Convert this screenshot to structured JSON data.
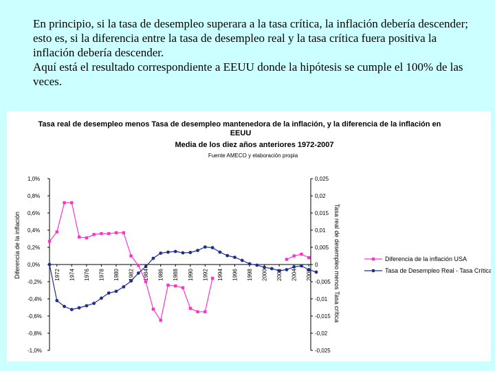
{
  "intro": {
    "paragraph1": "En principio, si la tasa de desempleo superara a la tasa crítica, la inflación debería descender; esto es, si la diferencia entre la tasa de desempleo real y la tasa crítica fuera positiva la inflación debería descender.",
    "paragraph2": "Aquí está el resultado correspondiente a EEUU donde la hipótesis se cumple el 100% de las veces."
  },
  "chart_data": {
    "type": "line",
    "title": "Tasa real de desempleo menos Tasa de desempleo mantenedora de la inflación, y la diferencia de la inflación en EEUU",
    "subtitle": "Media de los diez años anteriores 1972-2007",
    "source": "Fuente AMECO y elaboración propia",
    "ylabel_left": "Diferencia de la inflación",
    "ylabel_right": "Tasa real de desempleo menos Tasa crítica",
    "yticks_left": [
      "1,0%",
      "0,8%",
      "0,6%",
      "0,4%",
      "0,2%",
      "0,0%",
      "-0,2%",
      "-0,4%",
      "-0,6%",
      "-0,8%",
      "-1,0%"
    ],
    "yticks_right": [
      "0,025",
      "0,02",
      "0,015",
      "0,01",
      "0,005",
      "0",
      "-0,005",
      "-0,01",
      "-0,015",
      "-0,02",
      "-0,025"
    ],
    "ylim_left": [
      -1.0,
      1.0
    ],
    "ylim_right": [
      -0.025,
      0.025
    ],
    "x_tick_labels": [
      "1972",
      "1974",
      "1976",
      "1978",
      "1980",
      "1982",
      "1984",
      "1986",
      "1988",
      "1990",
      "1992",
      "1994",
      "1996",
      "1998",
      "2000",
      "2002",
      "2004",
      "2006"
    ],
    "x": [
      1971,
      1972,
      1973,
      1974,
      1975,
      1976,
      1977,
      1978,
      1979,
      1980,
      1981,
      1982,
      1983,
      1984,
      1985,
      1986,
      1987,
      1988,
      1989,
      1990,
      1991,
      1992,
      1993,
      1994,
      1995,
      1996,
      1997,
      1998,
      1999,
      2000,
      2001,
      2002,
      2003,
      2004,
      2005,
      2006,
      2007
    ],
    "legend_position": "right",
    "grid": false,
    "series": [
      {
        "name": "Diferencia de la inflación USA",
        "axis": "left",
        "color": "#ff33cc",
        "marker": "square",
        "values": [
          0.27,
          0.38,
          0.72,
          0.72,
          0.32,
          0.31,
          0.35,
          0.36,
          0.36,
          0.37,
          0.37,
          0.1,
          -0.01,
          -0.2,
          -0.52,
          -0.65,
          -0.24,
          -0.25,
          -0.27,
          -0.51,
          -0.55,
          -0.55,
          -0.16,
          null,
          null,
          null,
          null,
          null,
          null,
          null,
          null,
          null,
          0.06,
          0.1,
          0.12,
          0.08,
          null
        ]
      },
      {
        "name": "Tasa de Desempleo Real - Tasa Crítica, USA",
        "axis": "right",
        "color": "#1f2f8f",
        "marker": "circle",
        "values": [
          0.0,
          -0.0105,
          -0.0122,
          -0.0131,
          -0.0126,
          -0.012,
          -0.0113,
          -0.0098,
          -0.0083,
          -0.0078,
          -0.0065,
          -0.0048,
          -0.0025,
          -0.0006,
          0.0018,
          0.0033,
          0.0036,
          0.0038,
          0.0034,
          0.0035,
          0.0041,
          0.0051,
          0.0049,
          0.0036,
          0.0026,
          0.0021,
          0.0012,
          0.0002,
          -0.0002,
          -0.0008,
          -0.0012,
          -0.0018,
          -0.0015,
          -0.0007,
          -0.0004,
          -0.0015,
          -0.0022
        ]
      }
    ]
  }
}
